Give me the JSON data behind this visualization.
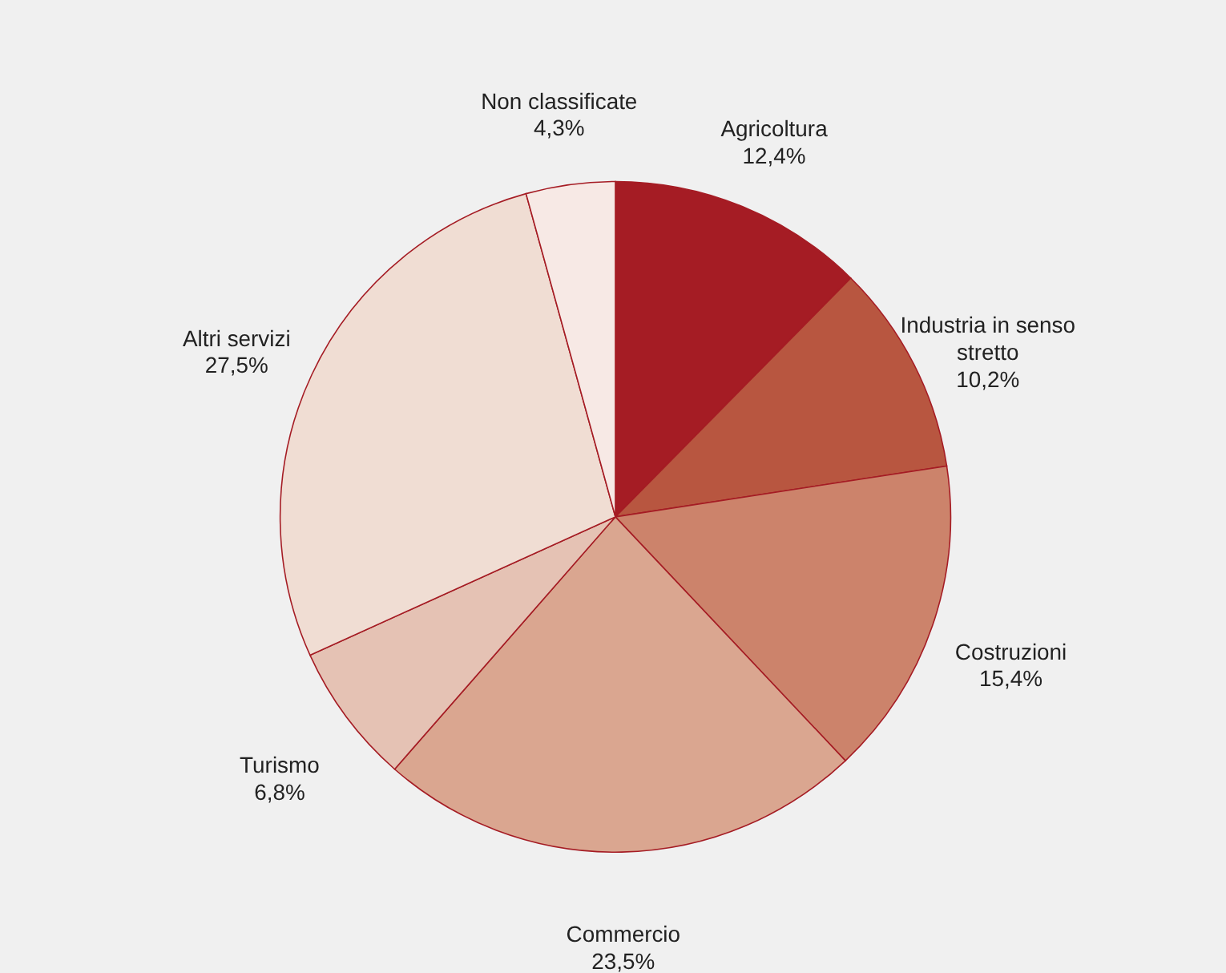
{
  "chart_data": {
    "type": "pie",
    "categories": [
      "Agricoltura",
      "Industria in senso stretto",
      "Costruzioni",
      "Commercio",
      "Turismo",
      "Altri servizi",
      "Non classificate"
    ],
    "values": [
      12.4,
      10.2,
      15.4,
      23.5,
      6.8,
      27.5,
      4.3
    ],
    "value_labels": [
      "12,4%",
      "10,2%",
      "15,4%",
      "23,5%",
      "6,8%",
      "27,5%",
      "4,3%"
    ],
    "colors": [
      "#a51c24",
      "#b85640",
      "#cc836b",
      "#daa690",
      "#e5c2b4",
      "#f0ddd3",
      "#f7e9e5"
    ]
  }
}
